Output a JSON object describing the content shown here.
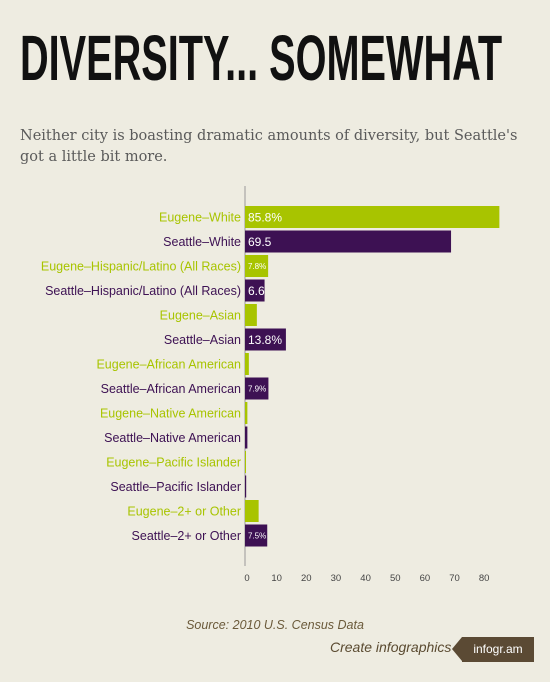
{
  "header": {
    "title": "DIVERSITY... SOMEWHAT",
    "subtitle": "Neither city is boasting dramatic amounts of diversity, but Seattle's got a little bit more."
  },
  "footer": {
    "source": "Source:  2010 U.S. Census Data",
    "credit": "Create infographics",
    "badge": "infogr.am"
  },
  "colors": {
    "eugene": "#a8c400",
    "seattle": "#3d1153",
    "axis": "#999999",
    "background": "#eeece1"
  },
  "chart_data": {
    "type": "bar",
    "orientation": "horizontal",
    "xlim": [
      0,
      85
    ],
    "x_ticks": [
      0,
      10,
      20,
      30,
      40,
      50,
      60,
      70,
      80
    ],
    "grid": false,
    "categories": [
      "Eugene–White",
      "Seattle–White",
      "Eugene–Hispanic/Latino (All Races)",
      "Seattle–Hispanic/Latino (All Races)",
      "Eugene–Asian",
      "Seattle–Asian",
      "Eugene–African American",
      "Seattle–African American",
      "Eugene–Native American",
      "Seattle–Native American",
      "Eugene–Pacific Islander",
      "Seattle–Pacific Islander",
      "Eugene–2+ or Other",
      "Seattle–2+ or Other"
    ],
    "city": [
      "eugene",
      "seattle",
      "eugene",
      "seattle",
      "eugene",
      "seattle",
      "eugene",
      "seattle",
      "eugene",
      "seattle",
      "eugene",
      "seattle",
      "eugene",
      "seattle"
    ],
    "values": [
      85.8,
      69.5,
      7.8,
      6.6,
      4.0,
      13.8,
      1.3,
      7.9,
      0.8,
      0.8,
      0.2,
      0.4,
      4.6,
      7.5
    ],
    "data_labels": [
      "85.8%",
      "69.5",
      "7.8%",
      "6.6",
      "",
      "13.8%",
      "",
      "7.9%",
      "",
      "",
      "",
      "",
      "",
      "7.5%"
    ]
  }
}
